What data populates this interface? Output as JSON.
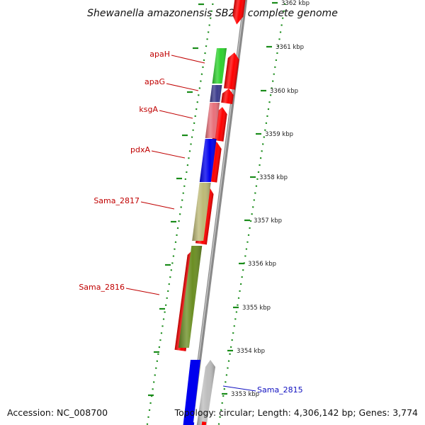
{
  "title": "Shewanella amazonensis SB2B, complete genome",
  "accession": "Accession: NC_008700",
  "topology": "Topology: circular; Length: 4,306,142 bp; Genes: 3,774",
  "colors": {
    "label_red": "#c00000",
    "label_blue": "#1010c0",
    "cds_red": "#ff0000",
    "tick_green": "#1a8c1a",
    "backbone_gray": "#8a8a8a"
  },
  "ticks": [
    {
      "label": "3362 kbp",
      "kbp": 3362
    },
    {
      "label": "3361 kbp",
      "kbp": 3361
    },
    {
      "label": "3360 kbp",
      "kbp": 3360
    },
    {
      "label": "3359 kbp",
      "kbp": 3359
    },
    {
      "label": "3358 kbp",
      "kbp": 3358
    },
    {
      "label": "3357 kbp",
      "kbp": 3357
    },
    {
      "label": "3356 kbp",
      "kbp": 3356
    },
    {
      "label": "3355 kbp",
      "kbp": 3355
    },
    {
      "label": "3354 kbp",
      "kbp": 3354
    },
    {
      "label": "3353 kbp",
      "kbp": 3353
    }
  ],
  "genes": [
    {
      "label": "apaH",
      "color": "#2ed12e"
    },
    {
      "label": "apaG",
      "color": "#3c3c8c"
    },
    {
      "label": "ksgA",
      "color": "#e8707a"
    },
    {
      "label": "pdxA",
      "color": "#0000ee"
    },
    {
      "label": "Sama_2817",
      "color": "#bdb976"
    },
    {
      "label": "Sama_2816",
      "color": "#6b8e23"
    },
    {
      "label": "Sama_2815",
      "color": "#bdbdbd",
      "label_color": "#1010c0"
    }
  ]
}
